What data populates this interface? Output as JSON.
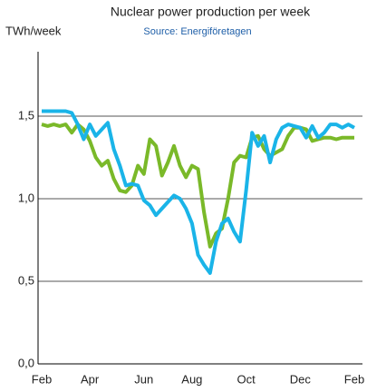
{
  "chart_data": {
    "type": "line",
    "title": "Nuclear power production per week",
    "subtitle": "Source: Energiföretagen",
    "y_label": "TWh/week",
    "categories": [
      "Feb",
      null,
      null,
      null,
      null,
      null,
      null,
      null,
      "Apr",
      null,
      null,
      null,
      null,
      null,
      null,
      null,
      null,
      "Jun",
      null,
      null,
      null,
      null,
      null,
      null,
      null,
      "Aug",
      null,
      null,
      null,
      null,
      null,
      null,
      null,
      null,
      "Oct",
      null,
      null,
      null,
      null,
      null,
      null,
      null,
      null,
      "Dec",
      null,
      null,
      null,
      null,
      null,
      null,
      null,
      null,
      "Feb"
    ],
    "series": [
      {
        "color": "#7ab929",
        "values": [
          1.45,
          1.44,
          1.45,
          1.44,
          1.45,
          1.4,
          1.45,
          1.42,
          1.35,
          1.25,
          1.2,
          1.23,
          1.12,
          1.05,
          1.04,
          1.08,
          1.2,
          1.15,
          1.36,
          1.32,
          1.14,
          1.22,
          1.32,
          1.2,
          1.13,
          1.2,
          1.18,
          0.92,
          0.71,
          0.79,
          0.82,
          1.0,
          1.22,
          1.26,
          1.25,
          1.37,
          1.38,
          1.3,
          1.26,
          1.28,
          1.3,
          1.38,
          1.43,
          1.43,
          1.42,
          1.35,
          1.36,
          1.37,
          1.37,
          1.36,
          1.37,
          1.37,
          1.37
        ]
      },
      {
        "color": "#1ab4e8",
        "values": [
          1.53,
          1.53,
          1.53,
          1.53,
          1.53,
          1.52,
          1.45,
          1.36,
          1.45,
          1.38,
          1.42,
          1.46,
          1.3,
          1.2,
          1.08,
          1.09,
          1.08,
          0.99,
          0.96,
          0.9,
          0.94,
          0.98,
          1.02,
          1.0,
          0.94,
          0.85,
          0.66,
          0.6,
          0.55,
          0.74,
          0.85,
          0.88,
          0.8,
          0.74,
          1.05,
          1.4,
          1.32,
          1.38,
          1.22,
          1.36,
          1.43,
          1.45,
          1.44,
          1.43,
          1.37,
          1.44,
          1.37,
          1.4,
          1.45,
          1.45,
          1.43,
          1.45,
          1.43
        ]
      }
    ],
    "ylim": [
      0,
      2
    ],
    "yticks": [
      {
        "value": 0,
        "label": "0,0"
      },
      {
        "value": 0.5,
        "label": "0,5"
      },
      {
        "value": 1,
        "label": "1,0"
      },
      {
        "value": 1.5,
        "label": "1,5"
      }
    ],
    "grid": true
  }
}
